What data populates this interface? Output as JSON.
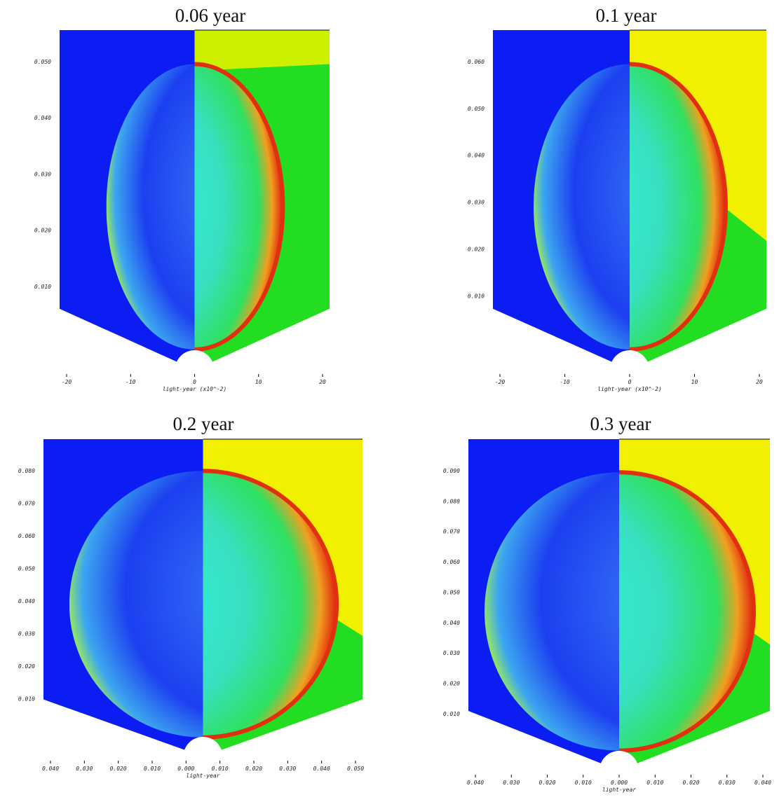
{
  "panels": [
    {
      "title": "0.06 year",
      "yticks": [
        "0.050",
        "0.040",
        "0.030",
        "0.020",
        "0.010"
      ],
      "xticks": [
        "-20",
        "-10",
        "0",
        "10",
        "20"
      ],
      "xlabel": "light-year (x10^-2)"
    },
    {
      "title": "0.1 year",
      "yticks": [
        "0.060",
        "0.050",
        "0.040",
        "0.030",
        "0.020",
        "0.010"
      ],
      "xticks": [
        "-20",
        "-10",
        "0",
        "10",
        "20"
      ],
      "xlabel": "light-year (x10^-2)"
    },
    {
      "title": "0.2 year",
      "yticks": [
        "0.080",
        "0.070",
        "0.060",
        "0.050",
        "0.040",
        "0.030",
        "0.020",
        "0.010"
      ],
      "xticks": [
        "0.040",
        "0.030",
        "0.020",
        "0.010",
        "0.000",
        "0.010",
        "0.020",
        "0.030",
        "0.040",
        "0.050"
      ],
      "xlabel": "light-year"
    },
    {
      "title": "0.3 year",
      "yticks": [
        "0.090",
        "0.080",
        "0.070",
        "0.060",
        "0.050",
        "0.040",
        "0.030",
        "0.020",
        "0.010"
      ],
      "xticks": [
        "0.040",
        "0.030",
        "0.020",
        "0.010",
        "0.000",
        "0.010",
        "0.020",
        "0.030",
        "0.040"
      ],
      "xlabel": "light-year"
    }
  ]
}
